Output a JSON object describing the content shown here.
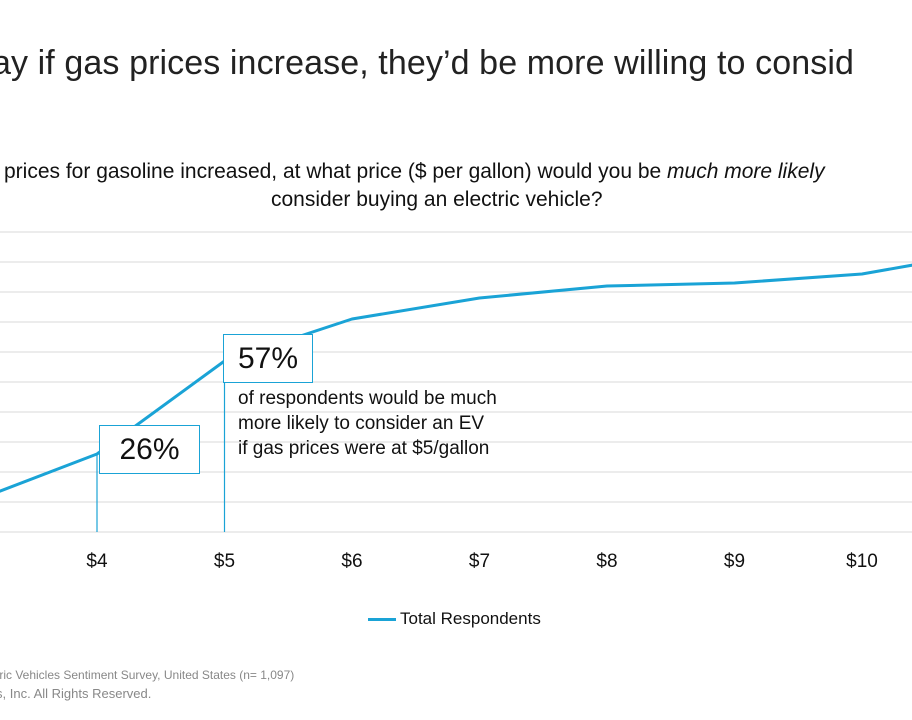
{
  "title": "ay if gas prices increase, they’d be more willing to consid",
  "question": {
    "line1_start": "prices for gasoline increased, at what price ($ per gallon) would you be ",
    "line1_emph": "much more likely",
    "line2": "consider buying an electric vehicle?"
  },
  "callouts": {
    "c4": "26%",
    "c5": "57%",
    "annotation": [
      "of respondents would be much",
      "more likely to consider an EV",
      "if gas prices were at $5/gallon"
    ]
  },
  "legend": {
    "label": "Total Respondents"
  },
  "footer": {
    "source": "tric Vehicles Sentiment Survey, United States (n= 1,097)",
    "copyright": "s, Inc.  All Rights Reserved."
  },
  "colors": {
    "series": "#1aa3d6",
    "grid": "#d9d9d9"
  },
  "chart_data": {
    "type": "line",
    "x_tick_labels": [
      "$4",
      "$5",
      "$6",
      "$7",
      "$8",
      "$9",
      "$10"
    ],
    "grid": true,
    "legend_position": "bottom",
    "series": [
      {
        "name": "Total Respondents",
        "x": [
          3.2,
          4,
          5,
          6,
          7,
          8,
          9,
          10,
          10.4
        ],
        "y": [
          13,
          26,
          57,
          71,
          78,
          82,
          83,
          86,
          89
        ]
      }
    ]
  }
}
